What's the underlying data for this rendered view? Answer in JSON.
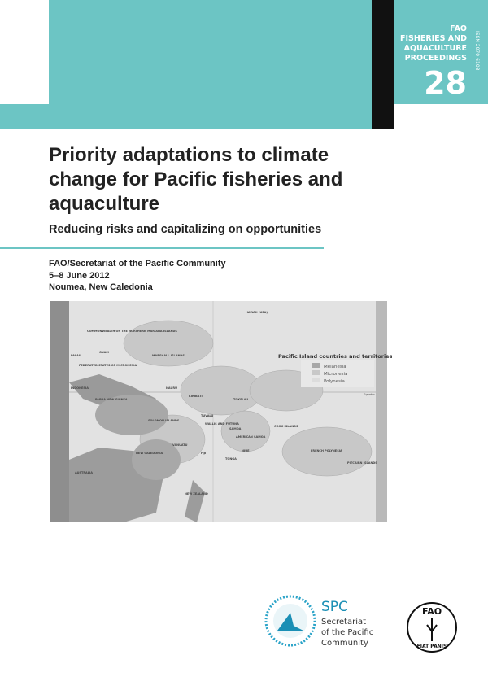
{
  "header": {
    "series_lines": [
      "FAO",
      "FISHERIES AND",
      "AQUACULTURE",
      "PROCEEDINGS"
    ],
    "number": "28",
    "issn": "ISSN 2070-6103"
  },
  "title_lines": [
    "Priority adaptations to climate",
    "change for Pacific fisheries and",
    "aquaculture"
  ],
  "subtitle": "Reducing risks and capitalizing on opportunities",
  "info": [
    "FAO/Secretariat of the Pacific Community",
    "5–8 June 2012",
    "Noumea, New Caledonia"
  ],
  "map": {
    "legend_title": "Pacific Island countries and territories",
    "legend": [
      "Melanesia",
      "Micronesia",
      "Polynesia"
    ],
    "labels": [
      "COMMONWEALTH OF THE NORTHERN MARIANA ISLANDS",
      "GUAM",
      "PALAU",
      "FEDERATED STATES OF MICRONESIA",
      "MARSHALL ISLANDS",
      "HAWAII (USA)",
      "NAURU",
      "KIRIBATI",
      "INDONESIA",
      "PAPUA NEW GUINEA",
      "SOLOMON ISLANDS",
      "TUVALU",
      "TOKELAU",
      "WALLIS AND FUTUNA",
      "SAMOA",
      "AMERICAN SAMOA",
      "VANUATU",
      "FIJI",
      "NIUE",
      "TONGA",
      "COOK ISLANDS",
      "FRENCH POLYNESIA",
      "PITCAIRN ISLANDS",
      "NEW CALEDONIA",
      "AUSTRALIA",
      "NEW ZEALAND",
      "Equator"
    ]
  },
  "spc": {
    "acronym": "SPC",
    "name_lines": [
      "Secretariat",
      "of the Pacific",
      "Community"
    ]
  },
  "fao": {
    "acronym": "FAO",
    "motto": "FIAT PANIS"
  }
}
